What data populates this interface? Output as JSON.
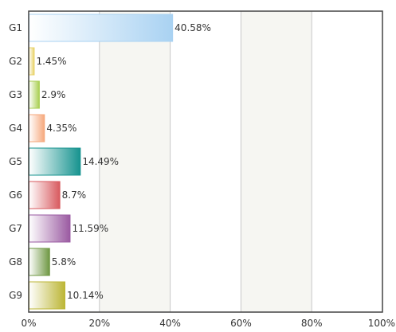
{
  "chart_data": {
    "type": "bar",
    "orientation": "horizontal",
    "categories": [
      "G1",
      "G2",
      "G3",
      "G4",
      "G5",
      "G6",
      "G7",
      "G8",
      "G9"
    ],
    "values": [
      40.58,
      1.45,
      2.9,
      4.35,
      14.49,
      8.7,
      11.59,
      5.8,
      10.14
    ],
    "value_labels": [
      "40.58%",
      "1.45%",
      "2.9%",
      "4.35%",
      "14.49%",
      "8.7%",
      "11.59%",
      "5.8%",
      "10.14%"
    ],
    "xlim": [
      0,
      100
    ],
    "x_ticks": [
      0,
      20,
      40,
      60,
      80,
      100
    ],
    "x_tick_labels": [
      "0%",
      "20%",
      "40%",
      "60%",
      "80%",
      "100%"
    ],
    "grid": "vertical",
    "legend": "none",
    "colors": [
      "#a9d2f2",
      "#e8d267",
      "#a9cf52",
      "#f6a87d",
      "#16938f",
      "#d85a5f",
      "#9a5aa1",
      "#6e9742",
      "#bcb636"
    ]
  }
}
